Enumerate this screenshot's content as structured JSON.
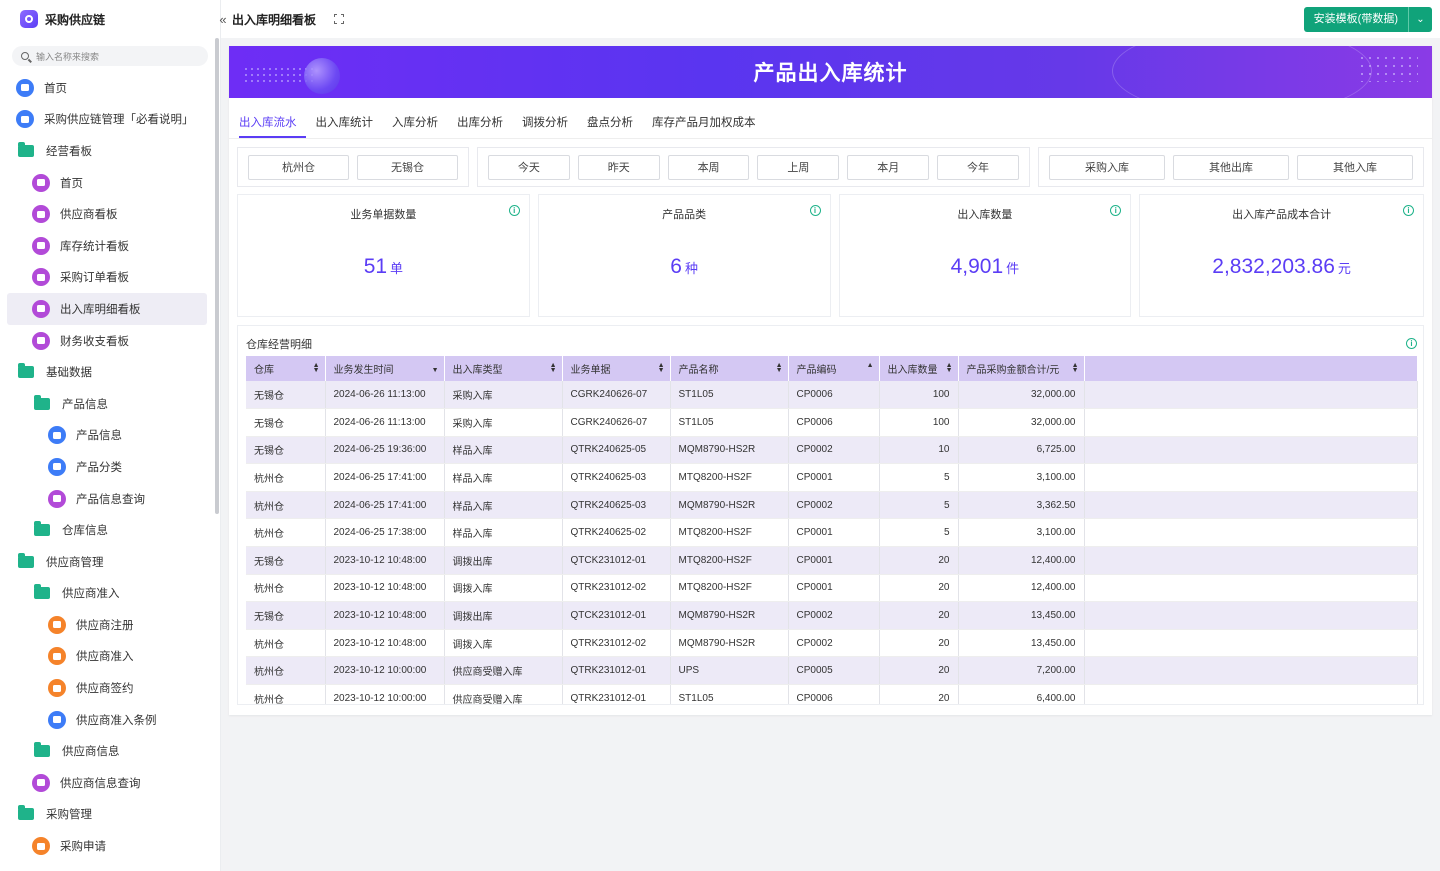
{
  "app": {
    "title": "采购供应链"
  },
  "search": {
    "placeholder": "输入名称来搜索"
  },
  "nav": [
    {
      "label": "首页",
      "level": 0,
      "icon": "home-icon",
      "kind": "home"
    },
    {
      "label": "采购供应链管理「必看说明」",
      "level": 0,
      "icon": "doc-icon",
      "kind": "blue"
    },
    {
      "label": "经营看板",
      "level": 0,
      "icon": "folder-icon",
      "kind": "folder"
    },
    {
      "label": "首页",
      "level": 1,
      "icon": "dashboard-icon",
      "kind": "purple"
    },
    {
      "label": "供应商看板",
      "level": 1,
      "icon": "dashboard-icon",
      "kind": "purple"
    },
    {
      "label": "库存统计看板",
      "level": 1,
      "icon": "dashboard-icon",
      "kind": "purple"
    },
    {
      "label": "采购订单看板",
      "level": 1,
      "icon": "dashboard-icon",
      "kind": "purple"
    },
    {
      "label": "出入库明细看板",
      "level": 1,
      "icon": "dashboard-icon",
      "kind": "purple",
      "active": true
    },
    {
      "label": "财务收支看板",
      "level": 1,
      "icon": "dashboard-icon",
      "kind": "purple"
    },
    {
      "label": "基础数据",
      "level": 0,
      "icon": "folder-icon",
      "kind": "folder"
    },
    {
      "label": "产品信息",
      "level": 1,
      "icon": "folder-icon",
      "kind": "folder"
    },
    {
      "label": "产品信息",
      "level": 2,
      "icon": "bookmark-icon",
      "kind": "blue"
    },
    {
      "label": "产品分类",
      "level": 2,
      "icon": "bookmark-icon",
      "kind": "blue"
    },
    {
      "label": "产品信息查询",
      "level": 2,
      "icon": "dashboard-icon",
      "kind": "purple"
    },
    {
      "label": "仓库信息",
      "level": 1,
      "icon": "folder-icon",
      "kind": "folder"
    },
    {
      "label": "供应商管理",
      "level": 0,
      "icon": "folder-icon",
      "kind": "folder"
    },
    {
      "label": "供应商准入",
      "level": 1,
      "icon": "folder-icon",
      "kind": "folder"
    },
    {
      "label": "供应商注册",
      "level": 2,
      "icon": "user-icon",
      "kind": "orange"
    },
    {
      "label": "供应商准入",
      "level": 2,
      "icon": "form-icon",
      "kind": "orange"
    },
    {
      "label": "供应商签约",
      "level": 2,
      "icon": "form-icon",
      "kind": "orange"
    },
    {
      "label": "供应商准入条例",
      "level": 2,
      "icon": "clipboard-icon",
      "kind": "blue"
    },
    {
      "label": "供应商信息",
      "level": 1,
      "icon": "folder-icon",
      "kind": "folder"
    },
    {
      "label": "供应商信息查询",
      "level": 1,
      "icon": "dashboard-icon",
      "kind": "purple"
    },
    {
      "label": "采购管理",
      "level": 0,
      "icon": "folder-icon",
      "kind": "folder"
    },
    {
      "label": "采购申请",
      "level": 1,
      "icon": "form-icon",
      "kind": "orange"
    }
  ],
  "topbar": {
    "page_title": "出入库明细看板",
    "install_label": "安装模板(带数据)"
  },
  "banner": {
    "title": "产品出入库统计"
  },
  "tabs": [
    "出入库流水",
    "出入库统计",
    "入库分析",
    "出库分析",
    "调拨分析",
    "盘点分析",
    "库存产品月加权成本"
  ],
  "filters": {
    "warehouses": [
      "杭州仓",
      "无锡仓"
    ],
    "periods": [
      "今天",
      "昨天",
      "本周",
      "上周",
      "本月",
      "今年"
    ],
    "types": [
      "采购入库",
      "其他出库",
      "其他入库"
    ]
  },
  "kpis": [
    {
      "label": "业务单据数量",
      "value": "51",
      "unit": "单"
    },
    {
      "label": "产品品类",
      "value": "6",
      "unit": "种"
    },
    {
      "label": "出入库数量",
      "value": "4,901",
      "unit": "件"
    },
    {
      "label": "出入库产品成本合计",
      "value": "2,832,203.86",
      "unit": "元"
    }
  ],
  "detail": {
    "title": "仓库经营明细",
    "columns": [
      "仓库",
      "业务发生时间",
      "出入库类型",
      "业务单据",
      "产品名称",
      "产品编码",
      "出入库数量",
      "产品采购金额合计/元"
    ],
    "rows": [
      [
        "无锡仓",
        "2024-06-26 11:13:00",
        "采购入库",
        "CGRK240626-07",
        "ST1L05",
        "CP0006",
        "100",
        "32,000.00"
      ],
      [
        "无锡仓",
        "2024-06-26 11:13:00",
        "采购入库",
        "CGRK240626-07",
        "ST1L05",
        "CP0006",
        "100",
        "32,000.00"
      ],
      [
        "无锡仓",
        "2024-06-25 19:36:00",
        "样品入库",
        "QTRK240625-05",
        "MQM8790-HS2R",
        "CP0002",
        "10",
        "6,725.00"
      ],
      [
        "杭州仓",
        "2024-06-25 17:41:00",
        "样品入库",
        "QTRK240625-03",
        "MTQ8200-HS2F",
        "CP0001",
        "5",
        "3,100.00"
      ],
      [
        "杭州仓",
        "2024-06-25 17:41:00",
        "样品入库",
        "QTRK240625-03",
        "MQM8790-HS2R",
        "CP0002",
        "5",
        "3,362.50"
      ],
      [
        "杭州仓",
        "2024-06-25 17:38:00",
        "样品入库",
        "QTRK240625-02",
        "MTQ8200-HS2F",
        "CP0001",
        "5",
        "3,100.00"
      ],
      [
        "无锡仓",
        "2023-10-12 10:48:00",
        "调拨出库",
        "QTCK231012-01",
        "MTQ8200-HS2F",
        "CP0001",
        "20",
        "12,400.00"
      ],
      [
        "杭州仓",
        "2023-10-12 10:48:00",
        "调拨入库",
        "QTRK231012-02",
        "MTQ8200-HS2F",
        "CP0001",
        "20",
        "12,400.00"
      ],
      [
        "无锡仓",
        "2023-10-12 10:48:00",
        "调拨出库",
        "QTCK231012-01",
        "MQM8790-HS2R",
        "CP0002",
        "20",
        "13,450.00"
      ],
      [
        "杭州仓",
        "2023-10-12 10:48:00",
        "调拨入库",
        "QTRK231012-02",
        "MQM8790-HS2R",
        "CP0002",
        "20",
        "13,450.00"
      ],
      [
        "杭州仓",
        "2023-10-12 10:00:00",
        "供应商受赠入库",
        "QTRK231012-01",
        "UPS",
        "CP0005",
        "20",
        "7,200.00"
      ],
      [
        "杭州仓",
        "2023-10-12 10:00:00",
        "供应商受赠入库",
        "QTRK231012-01",
        "ST1L05",
        "CP0006",
        "20",
        "6,400.00"
      ]
    ]
  }
}
